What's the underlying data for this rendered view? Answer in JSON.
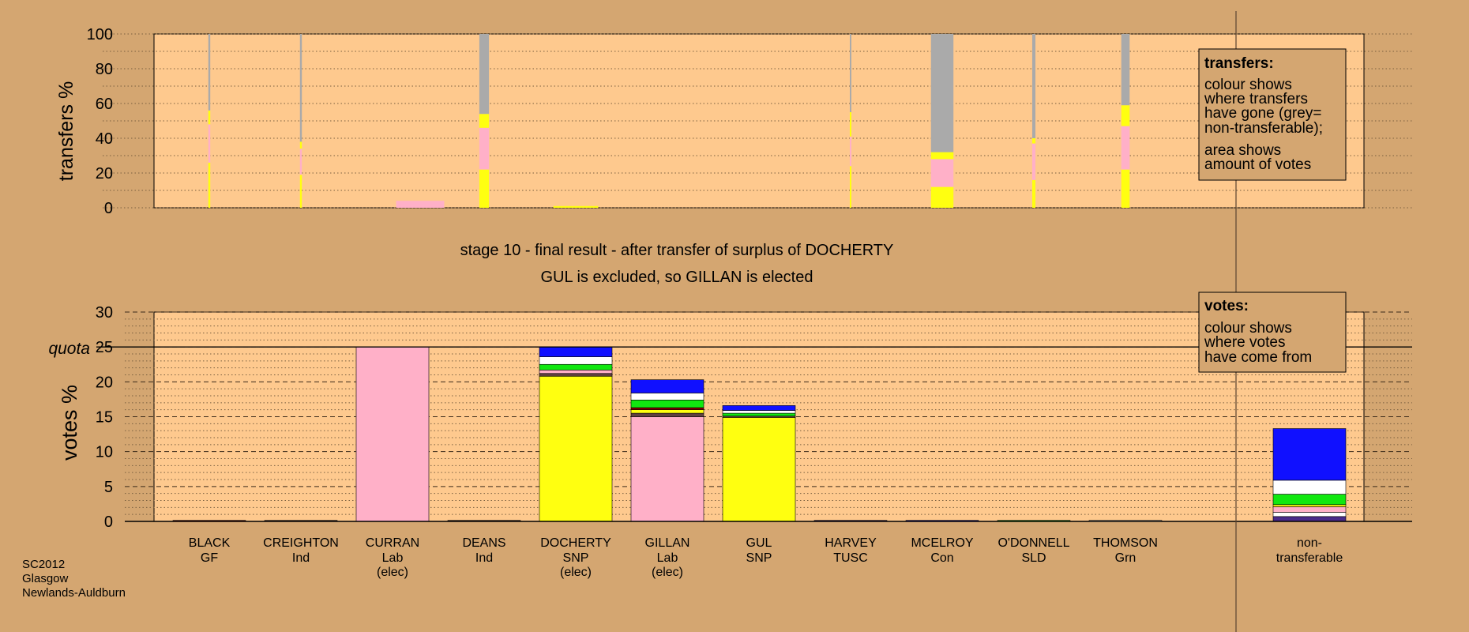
{
  "colors": {
    "background": "#d4a671",
    "plot_background": "#fec98e",
    "Lab": "#ffb0c8",
    "SNP": "#ffff10",
    "non_transferable": "#aaaaaa",
    "SLD": "#10e810",
    "Grn": "#ffffff",
    "Con": "#1010ff",
    "GF": "#880000",
    "Ind": "#604040",
    "TUSC": "#4a2a8a"
  },
  "captions": {
    "line1": "stage 10 - final result - after transfer of surplus of DOCHERTY",
    "line2": "GUL is excluded, so GILLAN is elected"
  },
  "footer": [
    "SC2012",
    "Glasgow",
    "Newlands-Auldburn"
  ],
  "legend_transfers": {
    "title": "transfers:",
    "lines": [
      "colour shows",
      "where transfers",
      "have gone (grey=",
      "non-transferable);",
      "area shows",
      "amount of votes"
    ]
  },
  "legend_votes": {
    "title": "votes:",
    "lines": [
      "colour shows",
      "where votes",
      "have come from"
    ]
  },
  "chart_data": [
    {
      "id": "transfers",
      "type": "bar",
      "ylabel": "transfers %",
      "ylim": [
        0,
        100
      ],
      "yticks": [
        0,
        20,
        40,
        60,
        80,
        100
      ],
      "grid": "dotted",
      "note": "stacked transfer bars per stage; values in %",
      "bars": [
        {
          "stage": 1,
          "x": 1,
          "width_pct": 0.3,
          "segments": [
            {
              "party": "SNP",
              "value": 26
            },
            {
              "party": "Lab",
              "value": 22
            },
            {
              "party": "SNP",
              "value": 8
            },
            {
              "party": "non_transferable",
              "value": 44
            }
          ]
        },
        {
          "stage": 2,
          "x": 2,
          "width_pct": 0.3,
          "segments": [
            {
              "party": "SNP",
              "value": 19
            },
            {
              "party": "Lab",
              "value": 15
            },
            {
              "party": "SNP",
              "value": 4
            },
            {
              "party": "non_transferable",
              "value": 62
            }
          ]
        },
        {
          "stage": 3,
          "x": 3,
          "width_pct": 7.5,
          "segments": [
            {
              "party": "Lab",
              "value": 4
            }
          ]
        },
        {
          "stage": 4,
          "x": 4,
          "width_pct": 1.5,
          "segments": [
            {
              "party": "SNP",
              "value": 22
            },
            {
              "party": "Lab",
              "value": 24
            },
            {
              "party": "SNP",
              "value": 8
            },
            {
              "party": "non_transferable",
              "value": 46
            }
          ]
        },
        {
          "stage": 5,
          "x": 5,
          "width_pct": 7.0,
          "segments": [
            {
              "party": "SNP",
              "value": 1
            }
          ]
        },
        {
          "stage": 6,
          "x": 8,
          "width_pct": 0.2,
          "segments": [
            {
              "party": "SNP",
              "value": 24
            },
            {
              "party": "Lab",
              "value": 17
            },
            {
              "party": "SNP",
              "value": 14
            },
            {
              "party": "non_transferable",
              "value": 45
            }
          ]
        },
        {
          "stage": 7,
          "x": 9,
          "width_pct": 3.5,
          "segments": [
            {
              "party": "SNP",
              "value": 12
            },
            {
              "party": "Lab",
              "value": 16
            },
            {
              "party": "SNP",
              "value": 4
            },
            {
              "party": "non_transferable",
              "value": 68
            }
          ]
        },
        {
          "stage": 8,
          "x": 10,
          "width_pct": 0.5,
          "segments": [
            {
              "party": "SNP",
              "value": 16
            },
            {
              "party": "Lab",
              "value": 21
            },
            {
              "party": "SNP",
              "value": 3
            },
            {
              "party": "non_transferable",
              "value": 60
            }
          ]
        },
        {
          "stage": 9,
          "x": 11,
          "width_pct": 1.3,
          "segments": [
            {
              "party": "SNP",
              "value": 22
            },
            {
              "party": "Lab",
              "value": 25
            },
            {
              "party": "SNP",
              "value": 12
            },
            {
              "party": "non_transferable",
              "value": 41
            }
          ]
        }
      ]
    },
    {
      "id": "votes",
      "type": "bar",
      "ylabel": "votes %",
      "ylim": [
        0,
        30
      ],
      "yticks": [
        0,
        5,
        10,
        15,
        20,
        25,
        30
      ],
      "quota": 25,
      "quota_label": "quota",
      "grid": "dashed",
      "candidates": [
        {
          "name": "BLACK",
          "party": "GF",
          "elected": "",
          "segments": [
            {
              "party": "GF",
              "value": 0.15
            }
          ]
        },
        {
          "name": "CREIGHTON",
          "party": "Ind",
          "elected": "",
          "segments": [
            {
              "party": "Ind",
              "value": 0.15
            }
          ]
        },
        {
          "name": "CURRAN",
          "party": "Lab",
          "elected": "(elec)",
          "segments": [
            {
              "party": "Lab",
              "value": 25
            }
          ]
        },
        {
          "name": "DEANS",
          "party": "Ind",
          "elected": "",
          "segments": [
            {
              "party": "Ind",
              "value": 0.15
            }
          ]
        },
        {
          "name": "DOCHERTY",
          "party": "SNP",
          "elected": "(elec)",
          "segments": [
            {
              "party": "SNP",
              "value": 20.8
            },
            {
              "party": "Ind",
              "value": 0.4
            },
            {
              "party": "Lab",
              "value": 0.5
            },
            {
              "party": "SLD",
              "value": 0.8
            },
            {
              "party": "Grn",
              "value": 1.1
            },
            {
              "party": "Con",
              "value": 1.4
            }
          ]
        },
        {
          "name": "GILLAN",
          "party": "Lab",
          "elected": "(elec)",
          "segments": [
            {
              "party": "Lab",
              "value": 15
            },
            {
              "party": "Ind",
              "value": 0.5
            },
            {
              "party": "SNP",
              "value": 0.5
            },
            {
              "party": "GF",
              "value": 0.3
            },
            {
              "party": "SLD",
              "value": 1.1
            },
            {
              "party": "Grn",
              "value": 1.0
            },
            {
              "party": "Con",
              "value": 1.9
            }
          ]
        },
        {
          "name": "GUL",
          "party": "SNP",
          "elected": "",
          "segments": [
            {
              "party": "SNP",
              "value": 14.9
            },
            {
              "party": "Ind",
              "value": 0.2
            },
            {
              "party": "SLD",
              "value": 0.4
            },
            {
              "party": "Grn",
              "value": 0.4
            },
            {
              "party": "Con",
              "value": 0.7
            }
          ]
        },
        {
          "name": "HARVEY",
          "party": "TUSC",
          "elected": "",
          "segments": [
            {
              "party": "TUSC",
              "value": 0.15
            }
          ]
        },
        {
          "name": "MCELROY",
          "party": "Con",
          "elected": "",
          "segments": [
            {
              "party": "Con",
              "value": 0.15
            }
          ]
        },
        {
          "name": "O'DONNELL",
          "party": "SLD",
          "elected": "",
          "segments": [
            {
              "party": "SLD",
              "value": 0.15
            }
          ]
        },
        {
          "name": "THOMSON",
          "party": "Grn",
          "elected": "",
          "segments": [
            {
              "party": "Grn",
              "value": 0.15
            }
          ]
        }
      ],
      "non_transferable": {
        "label_line1": "non-",
        "label_line2": "transferable",
        "segments": [
          {
            "party": "TUSC",
            "value": 0.7
          },
          {
            "party": "Grn",
            "value": 0.6
          },
          {
            "party": "Lab",
            "value": 0.8
          },
          {
            "party": "SNP",
            "value": 0.3
          },
          {
            "party": "SLD",
            "value": 1.5
          },
          {
            "party": "Grn",
            "value": 2.0
          },
          {
            "party": "Con",
            "value": 7.4
          }
        ]
      }
    }
  ]
}
